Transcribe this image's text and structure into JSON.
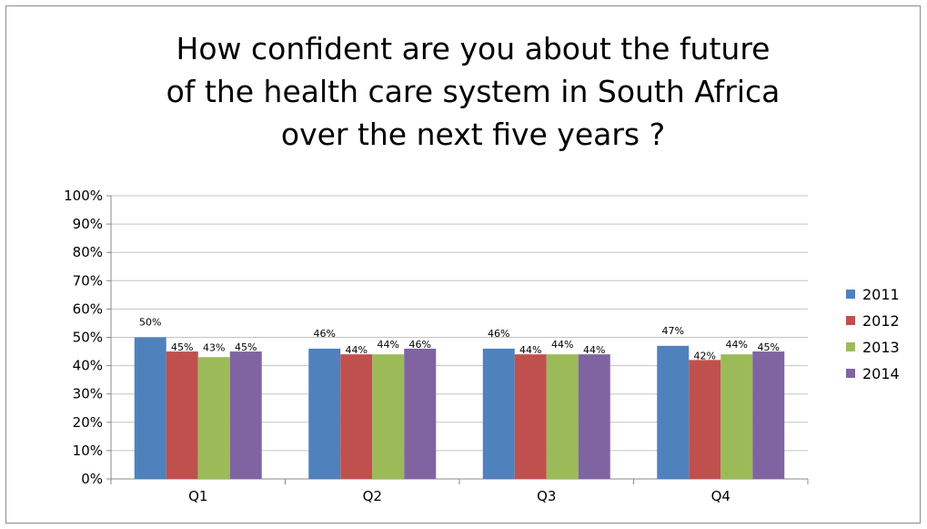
{
  "chart_data": {
    "type": "bar",
    "title_lines": [
      "How confident are you about the future",
      "of the health care system in South Africa",
      "over the next five years ?"
    ],
    "categories": [
      "Q1",
      "Q2",
      "Q3",
      "Q4"
    ],
    "series": [
      {
        "name": "2011",
        "color": "#4f81bd",
        "values": [
          50,
          46,
          46,
          47
        ],
        "labels": [
          "50%",
          "46%",
          "46%",
          "47%"
        ]
      },
      {
        "name": "2012",
        "color": "#c0504d",
        "values": [
          45,
          44,
          44,
          42
        ],
        "labels": [
          "45%",
          "44%",
          "44%",
          "42%"
        ]
      },
      {
        "name": "2013",
        "color": "#9bbb59",
        "values": [
          43,
          44,
          44,
          44
        ],
        "labels": [
          "43%",
          "44%",
          "44%",
          "44%"
        ]
      },
      {
        "name": "2014",
        "color": "#8064a2",
        "values": [
          45,
          46,
          44,
          45
        ],
        "labels": [
          "45%",
          "46%",
          "44%",
          "45%"
        ]
      }
    ],
    "yticks": [
      "0%",
      "10%",
      "20%",
      "30%",
      "40%",
      "50%",
      "60%",
      "70%",
      "80%",
      "90%",
      "100%"
    ],
    "ylim": [
      0,
      100
    ],
    "grid": true,
    "legend_position": "right"
  }
}
